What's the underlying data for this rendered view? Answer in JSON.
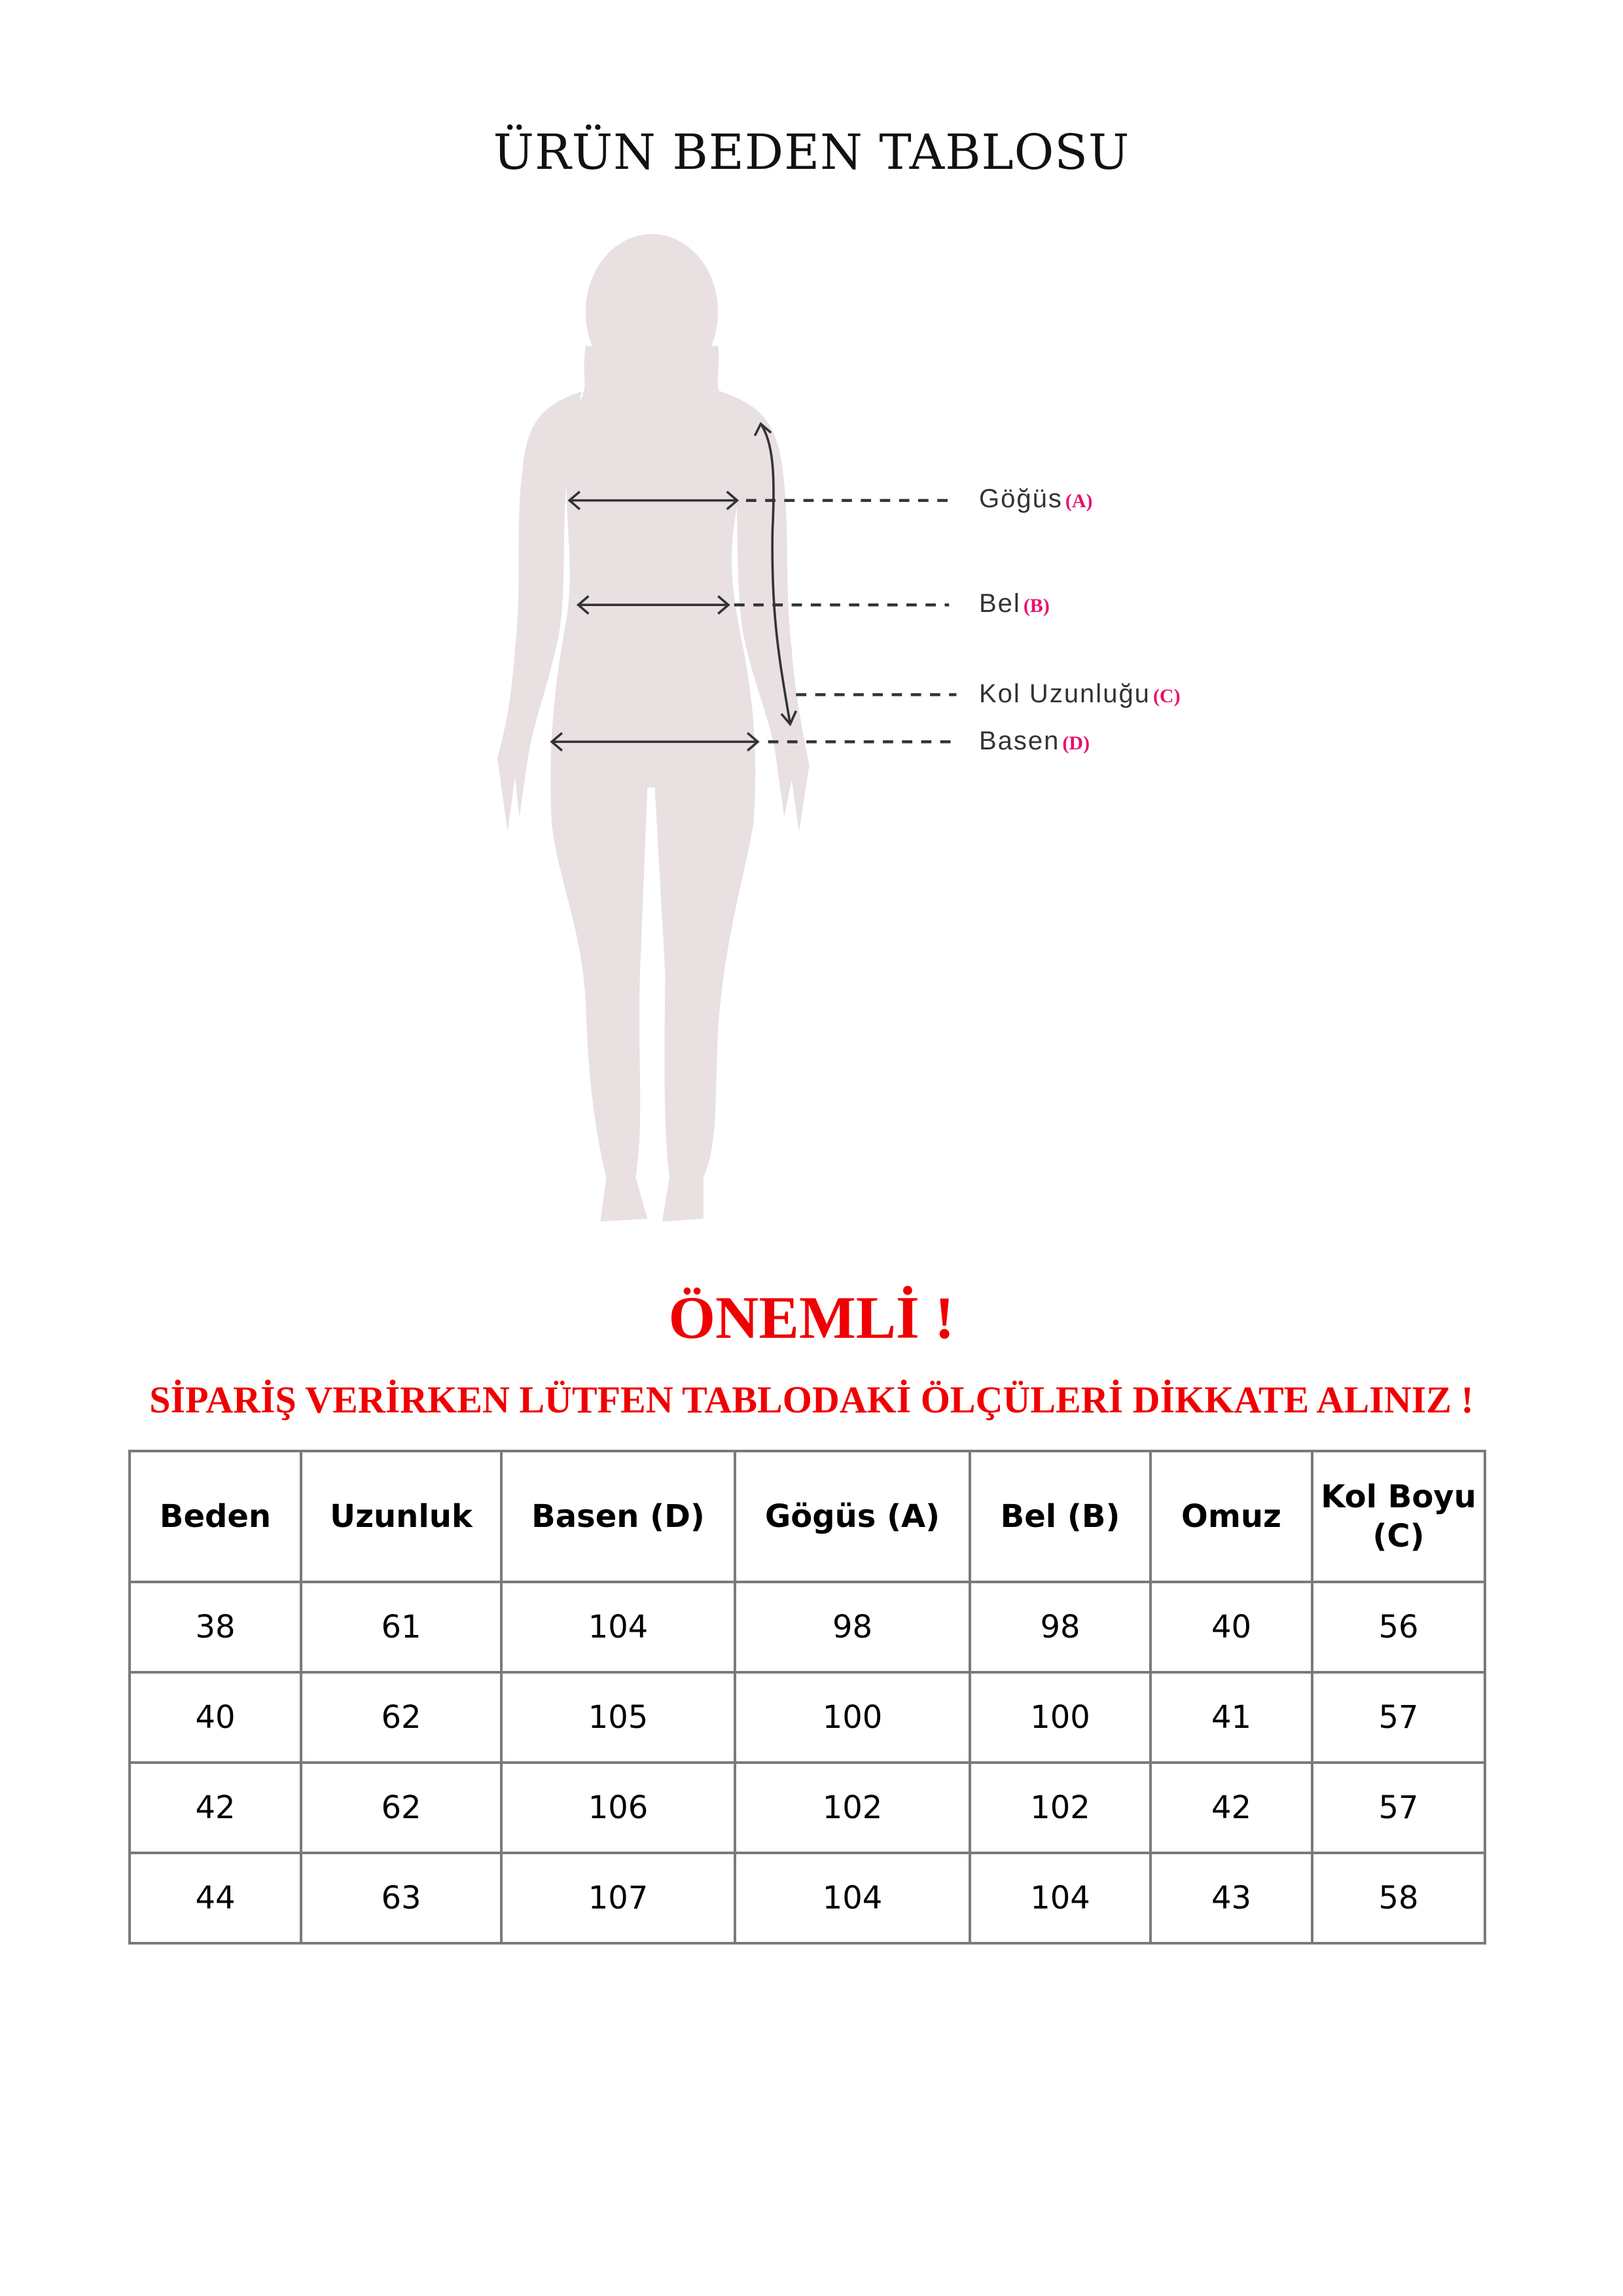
{
  "title": "ÜRÜN BEDEN TABLOSU",
  "figure": {
    "labels": [
      {
        "name": "Göğüs",
        "code": "(A)"
      },
      {
        "name": "Bel",
        "code": "(B)"
      },
      {
        "name": "Kol Uzunluğu",
        "code": "(C)"
      },
      {
        "name": "Basen",
        "code": "(D)"
      }
    ],
    "colors": {
      "silhouette": "#e8e0e1",
      "code": "#ea0f6b",
      "lines": "#333333"
    }
  },
  "important": "ÖNEMLİ !",
  "notice": "SİPARİŞ VERİRKEN LÜTFEN TABLODAKİ ÖLÇÜLERİ DİKKATE ALINIZ !",
  "notice_color": "#f00000",
  "table": {
    "headers": [
      "Beden",
      "Uzunluk",
      "Basen (D)",
      "Gögüs (A)",
      "Bel (B)",
      "Omuz",
      "Kol Boyu (C)"
    ],
    "rows": [
      [
        "38",
        "61",
        "104",
        "98",
        "98",
        "40",
        "56"
      ],
      [
        "40",
        "62",
        "105",
        "100",
        "100",
        "41",
        "57"
      ],
      [
        "42",
        "62",
        "106",
        "102",
        "102",
        "42",
        "57"
      ],
      [
        "44",
        "63",
        "107",
        "104",
        "104",
        "43",
        "58"
      ]
    ]
  }
}
